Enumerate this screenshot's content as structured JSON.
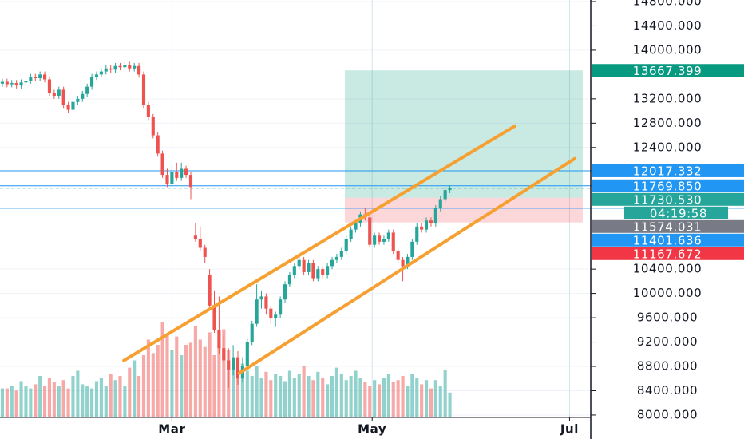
{
  "chart_data": {
    "type": "candlestick",
    "xlim": [
      -0.5,
      124.9
    ],
    "ylim": [
      7960,
      14826
    ],
    "xticks": [
      {
        "value": 36,
        "label": "Mar"
      },
      {
        "value": 78.5,
        "label": "May"
      },
      {
        "value": 120.4,
        "label": "Jul"
      }
    ],
    "yticks": [
      {
        "value": 8000,
        "label": "8000.000"
      },
      {
        "value": 8400,
        "label": "8400.000"
      },
      {
        "value": 8800,
        "label": "8800.000"
      },
      {
        "value": 9200,
        "label": "9200.000"
      },
      {
        "value": 9600,
        "label": "9600.000"
      },
      {
        "value": 10000,
        "label": "10000.000"
      },
      {
        "value": 10400,
        "label": "10400.000"
      },
      {
        "value": 12400,
        "label": "12400.000"
      },
      {
        "value": 12800,
        "label": "12800.000"
      },
      {
        "value": 13200,
        "label": "13200.000"
      },
      {
        "value": 14000,
        "label": "14000.000"
      },
      {
        "value": 14400,
        "label": "14400.000"
      },
      {
        "value": 14800,
        "label": "14800.000"
      }
    ],
    "grid": true,
    "up_color": "#26a69a",
    "down_color": "#ef5350",
    "ohlc": [
      [
        13450,
        13530,
        13400,
        13480
      ],
      [
        13480,
        13530,
        13390,
        13440
      ],
      [
        13440,
        13510,
        13390,
        13460
      ],
      [
        13460,
        13510,
        13370,
        13420
      ],
      [
        13420,
        13520,
        13370,
        13470
      ],
      [
        13470,
        13550,
        13420,
        13500
      ],
      [
        13500,
        13610,
        13450,
        13560
      ],
      [
        13560,
        13610,
        13490,
        13540
      ],
      [
        13540,
        13650,
        13490,
        13600
      ],
      [
        13600,
        13650,
        13470,
        13520
      ],
      [
        13520,
        13570,
        13250,
        13300
      ],
      [
        13300,
        13350,
        13200,
        13250
      ],
      [
        13250,
        13400,
        13200,
        13350
      ],
      [
        13350,
        13400,
        13050,
        13100
      ],
      [
        13100,
        13150,
        12970,
        13020
      ],
      [
        13020,
        13200,
        12970,
        13150
      ],
      [
        13150,
        13250,
        13100,
        13200
      ],
      [
        13200,
        13330,
        13150,
        13280
      ],
      [
        13280,
        13450,
        13230,
        13400
      ],
      [
        13400,
        13610,
        13350,
        13560
      ],
      [
        13560,
        13650,
        13510,
        13600
      ],
      [
        13600,
        13700,
        13550,
        13650
      ],
      [
        13650,
        13750,
        13600,
        13700
      ],
      [
        13700,
        13750,
        13630,
        13680
      ],
      [
        13680,
        13790,
        13630,
        13740
      ],
      [
        13740,
        13790,
        13670,
        13720
      ],
      [
        13720,
        13810,
        13670,
        13760
      ],
      [
        13760,
        13810,
        13650,
        13700
      ],
      [
        13700,
        13790,
        13650,
        13740
      ],
      [
        13740,
        13790,
        13550,
        13600
      ],
      [
        13600,
        13650,
        13050,
        13100
      ],
      [
        13100,
        13150,
        12850,
        12900
      ],
      [
        12900,
        12950,
        12550,
        12600
      ],
      [
        12600,
        12650,
        12250,
        12300
      ],
      [
        12300,
        12350,
        11900,
        11950
      ],
      [
        11950,
        12050,
        11750,
        11800
      ],
      [
        11800,
        12100,
        11750,
        12000
      ],
      [
        12000,
        12150,
        11850,
        11900
      ],
      [
        11900,
        12150,
        11850,
        12050
      ],
      [
        12050,
        12100,
        11900,
        11950
      ],
      [
        11950,
        12000,
        11550,
        11750
      ],
      [
        10950,
        11150,
        10850,
        10900
      ],
      [
        10900,
        11100,
        10700,
        10750
      ],
      [
        10750,
        10800,
        10500,
        10600
      ],
      [
        10300,
        10400,
        9750,
        9800
      ],
      [
        9800,
        10050,
        9350,
        9400
      ],
      [
        9400,
        9950,
        9000,
        9100
      ],
      [
        9100,
        9300,
        8850,
        8900
      ],
      [
        8900,
        9100,
        8450,
        8750
      ],
      [
        8750,
        9150,
        8650,
        8950
      ],
      [
        8950,
        9050,
        8500,
        8600
      ],
      [
        8600,
        8950,
        8550,
        8800
      ],
      [
        8800,
        9250,
        8750,
        9200
      ],
      [
        9200,
        9550,
        9150,
        9500
      ],
      [
        9500,
        10150,
        9450,
        9900
      ],
      [
        9900,
        10050,
        9750,
        9950
      ],
      [
        9950,
        10000,
        9650,
        9750
      ],
      [
        9750,
        9800,
        9500,
        9600
      ],
      [
        9600,
        9700,
        9450,
        9650
      ],
      [
        9650,
        9950,
        9600,
        9900
      ],
      [
        9900,
        10200,
        9850,
        10150
      ],
      [
        10150,
        10350,
        10100,
        10300
      ],
      [
        10300,
        10500,
        10250,
        10450
      ],
      [
        10450,
        10650,
        10400,
        10550
      ],
      [
        10550,
        10600,
        10300,
        10350
      ],
      [
        10350,
        10550,
        10300,
        10500
      ],
      [
        10500,
        10550,
        10200,
        10250
      ],
      [
        10250,
        10450,
        10200,
        10400
      ],
      [
        10400,
        10450,
        10250,
        10300
      ],
      [
        10300,
        10500,
        10250,
        10450
      ],
      [
        10450,
        10600,
        10400,
        10550
      ],
      [
        10550,
        10650,
        10500,
        10600
      ],
      [
        10600,
        10750,
        10550,
        10700
      ],
      [
        10700,
        10950,
        10650,
        10900
      ],
      [
        10900,
        11100,
        10850,
        11050
      ],
      [
        11050,
        11200,
        11000,
        11150
      ],
      [
        11150,
        11350,
        11100,
        11300
      ],
      [
        11300,
        11400,
        11200,
        11250
      ],
      [
        11250,
        11300,
        10750,
        10800
      ],
      [
        10800,
        11000,
        10750,
        10950
      ],
      [
        10950,
        11000,
        10800,
        10850
      ],
      [
        10850,
        10950,
        10800,
        10900
      ],
      [
        10900,
        11050,
        10850,
        11000
      ],
      [
        11000,
        11050,
        10650,
        10700
      ],
      [
        10700,
        10750,
        10500,
        10550
      ],
      [
        10550,
        10600,
        10200,
        10450
      ],
      [
        10450,
        10650,
        10400,
        10600
      ],
      [
        10600,
        10900,
        10550,
        10850
      ],
      [
        10850,
        11150,
        10800,
        11100
      ],
      [
        11100,
        11150,
        11000,
        11050
      ],
      [
        11050,
        11250,
        11000,
        11200
      ],
      [
        11200,
        11250,
        11100,
        11150
      ],
      [
        11150,
        11450,
        11100,
        11400
      ],
      [
        11400,
        11600,
        11350,
        11550
      ],
      [
        11550,
        11750,
        11500,
        11700
      ],
      [
        11700,
        11780,
        11650,
        11730.53
      ]
    ],
    "volume": [
      28,
      28,
      30,
      26,
      35,
      30,
      28,
      32,
      40,
      30,
      38,
      34,
      30,
      36,
      28,
      40,
      45,
      32,
      30,
      28,
      35,
      38,
      30,
      42,
      36,
      40,
      30,
      48,
      55,
      40,
      60,
      75,
      62,
      70,
      92,
      80,
      65,
      78,
      60,
      70,
      72,
      88,
      75,
      68,
      82,
      60,
      70,
      85,
      65,
      55,
      48,
      52,
      45,
      40,
      50,
      38,
      44,
      36,
      42,
      40,
      35,
      45,
      38,
      42,
      50,
      40,
      36,
      44,
      38,
      32,
      40,
      48,
      42,
      36,
      40,
      45,
      38,
      34,
      30,
      36,
      32,
      38,
      42,
      34,
      36,
      40,
      30,
      42,
      38,
      32,
      36,
      28,
      36,
      30,
      46,
      24
    ],
    "vlim": [
      0,
      100
    ],
    "channels": [
      {
        "x": [
          25.8,
          108.8
        ],
        "y": [
          8897,
          12753
        ]
      },
      {
        "x": [
          50.3,
          121.5
        ],
        "y": [
          8688,
          12217
        ]
      }
    ],
    "channel_color": "#f5a030",
    "position": {
      "x": [
        72.7,
        123.2
      ],
      "entry": 11574.031,
      "target": 13667.399,
      "stop": 11167.672
    },
    "levels": [
      {
        "value": 13667.399,
        "label": "13667.399",
        "color": "#089981",
        "line": false
      },
      {
        "value": 12017.332,
        "label": "12017.332",
        "color": "#2196f3",
        "line": true
      },
      {
        "value": 11769.85,
        "label": "11769.850",
        "color": "#2196f3",
        "line": true
      },
      {
        "value": 11730.53,
        "label": "11730.530",
        "color": "#26a69a",
        "line": true,
        "dashed": true,
        "countdown": "04:19:58"
      },
      {
        "value": 11574.031,
        "label": "11574.031",
        "color": "#787b86",
        "line": false
      },
      {
        "value": 11401.636,
        "label": "11401.636",
        "color": "#2196f3",
        "line": true
      },
      {
        "value": 11167.672,
        "label": "11167.672",
        "color": "#f23645",
        "line": false
      }
    ]
  }
}
